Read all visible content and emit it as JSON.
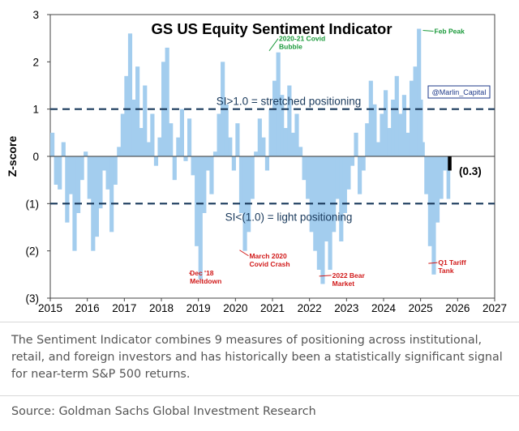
{
  "chart_data": {
    "type": "area",
    "title": "GS US Equity Sentiment Indicator",
    "ylabel": "Z-score",
    "xlabel": "",
    "xlim": [
      2015,
      2027
    ],
    "ylim": [
      -3,
      3
    ],
    "x_ticks": [
      2015,
      2016,
      2017,
      2018,
      2019,
      2020,
      2021,
      2022,
      2023,
      2024,
      2025,
      2026,
      2027
    ],
    "x_tick_labels": [
      "2015",
      "2016",
      "2017",
      "2018",
      "2019",
      "2020",
      "2021",
      "2022",
      "2023",
      "2024",
      "2025",
      "2026",
      "2027"
    ],
    "y_ticks": [
      3,
      2,
      1,
      0,
      -1,
      -2,
      -3
    ],
    "y_tick_labels": [
      "3",
      "2",
      "1",
      "0",
      "(1)",
      "(2)",
      "(3)"
    ],
    "series": [
      {
        "name": "Sentiment Indicator",
        "color": "#a3cdee",
        "x": [
          2015.0,
          2015.1,
          2015.2,
          2015.3,
          2015.4,
          2015.5,
          2015.6,
          2015.7,
          2015.8,
          2015.9,
          2016.0,
          2016.1,
          2016.2,
          2016.3,
          2016.4,
          2016.5,
          2016.6,
          2016.7,
          2016.8,
          2016.9,
          2017.0,
          2017.1,
          2017.2,
          2017.3,
          2017.4,
          2017.5,
          2017.6,
          2017.7,
          2017.8,
          2017.9,
          2018.0,
          2018.1,
          2018.2,
          2018.3,
          2018.4,
          2018.5,
          2018.6,
          2018.7,
          2018.8,
          2018.9,
          2019.0,
          2019.1,
          2019.2,
          2019.3,
          2019.4,
          2019.5,
          2019.6,
          2019.7,
          2019.8,
          2019.9,
          2020.0,
          2020.1,
          2020.2,
          2020.3,
          2020.4,
          2020.5,
          2020.6,
          2020.7,
          2020.8,
          2020.9,
          2021.0,
          2021.1,
          2021.2,
          2021.3,
          2021.4,
          2021.5,
          2021.6,
          2021.7,
          2021.8,
          2021.9,
          2022.0,
          2022.1,
          2022.2,
          2022.3,
          2022.4,
          2022.5,
          2022.6,
          2022.7,
          2022.8,
          2022.9,
          2023.0,
          2023.1,
          2023.2,
          2023.3,
          2023.4,
          2023.5,
          2023.6,
          2023.7,
          2023.8,
          2023.9,
          2024.0,
          2024.1,
          2024.2,
          2024.3,
          2024.4,
          2024.5,
          2024.6,
          2024.7,
          2024.8,
          2024.9,
          2025.0,
          2025.05,
          2025.1,
          2025.2,
          2025.3,
          2025.4,
          2025.5,
          2025.6,
          2025.7
        ],
        "values": [
          0.5,
          -0.6,
          -0.7,
          0.3,
          -1.4,
          -0.8,
          -2.0,
          -1.2,
          -0.5,
          0.1,
          -0.9,
          -2.0,
          -1.7,
          -1.1,
          -0.3,
          -0.7,
          -1.6,
          -0.6,
          0.2,
          0.9,
          1.7,
          2.6,
          1.2,
          1.9,
          0.6,
          1.5,
          0.3,
          0.9,
          -0.2,
          0.4,
          2.0,
          2.3,
          0.7,
          -0.5,
          0.4,
          1.0,
          -0.1,
          0.8,
          -0.4,
          -1.9,
          -2.6,
          -1.2,
          -0.3,
          -0.8,
          0.1,
          0.9,
          2.0,
          1.1,
          0.4,
          -0.3,
          0.7,
          -1.2,
          -2.0,
          -1.6,
          -0.9,
          0.1,
          0.8,
          0.4,
          -0.3,
          1.0,
          1.6,
          2.2,
          1.3,
          0.6,
          1.5,
          0.5,
          0.9,
          0.2,
          -0.5,
          -0.9,
          -1.6,
          -2.0,
          -2.4,
          -2.7,
          -1.8,
          -2.4,
          -1.6,
          -0.9,
          -1.8,
          -1.2,
          -0.7,
          -0.2,
          0.5,
          -0.8,
          -0.3,
          0.7,
          1.6,
          1.1,
          0.3,
          0.9,
          1.4,
          0.6,
          1.2,
          1.7,
          0.9,
          1.3,
          0.5,
          1.6,
          1.9,
          2.7,
          1.2,
          0.3,
          -0.8,
          -1.9,
          -2.5,
          -1.4,
          -0.9,
          -0.3,
          -0.9
        ]
      },
      {
        "name": "Latest reading",
        "color": "#000000",
        "x": [
          2025.78
        ],
        "values": [
          -0.3
        ]
      }
    ],
    "reference_lines": [
      {
        "y": 1.0,
        "label": "SI>1.0 = stretched positioning"
      },
      {
        "y": -1.0,
        "label": "SI<(1.0) = light positioning"
      }
    ],
    "annotations": [
      {
        "text": "Feb Peak",
        "x": 2025.15,
        "y": 2.7,
        "color": "#1b9a3b"
      },
      {
        "text": "2020-21 Covid Bubble",
        "x": 2021.0,
        "y": 2.2,
        "color": "#1b9a3b"
      },
      {
        "text": "Dec '18 Meltdown",
        "x": 2018.9,
        "y": -2.45,
        "color": "#d11a1a"
      },
      {
        "text": "March 2020 Covid Crash",
        "x": 2020.2,
        "y": -1.95,
        "color": "#d11a1a"
      },
      {
        "text": "2022 Bear Market",
        "x": 2022.35,
        "y": -2.5,
        "color": "#d11a1a"
      },
      {
        "text": "Q1 Tariff Tank",
        "x": 2025.3,
        "y": -2.3,
        "color": "#d11a1a"
      }
    ],
    "latest_label": "(0.3)",
    "watermark": "@Marlin_Capital"
  },
  "caption": "The Sentiment Indicator combines 9 measures of positioning across institutional, retail, and foreign investors and has historically been a statistically significant signal for near-term S&P 500 returns.",
  "source": "Source: Goldman Sachs Global Investment Research"
}
